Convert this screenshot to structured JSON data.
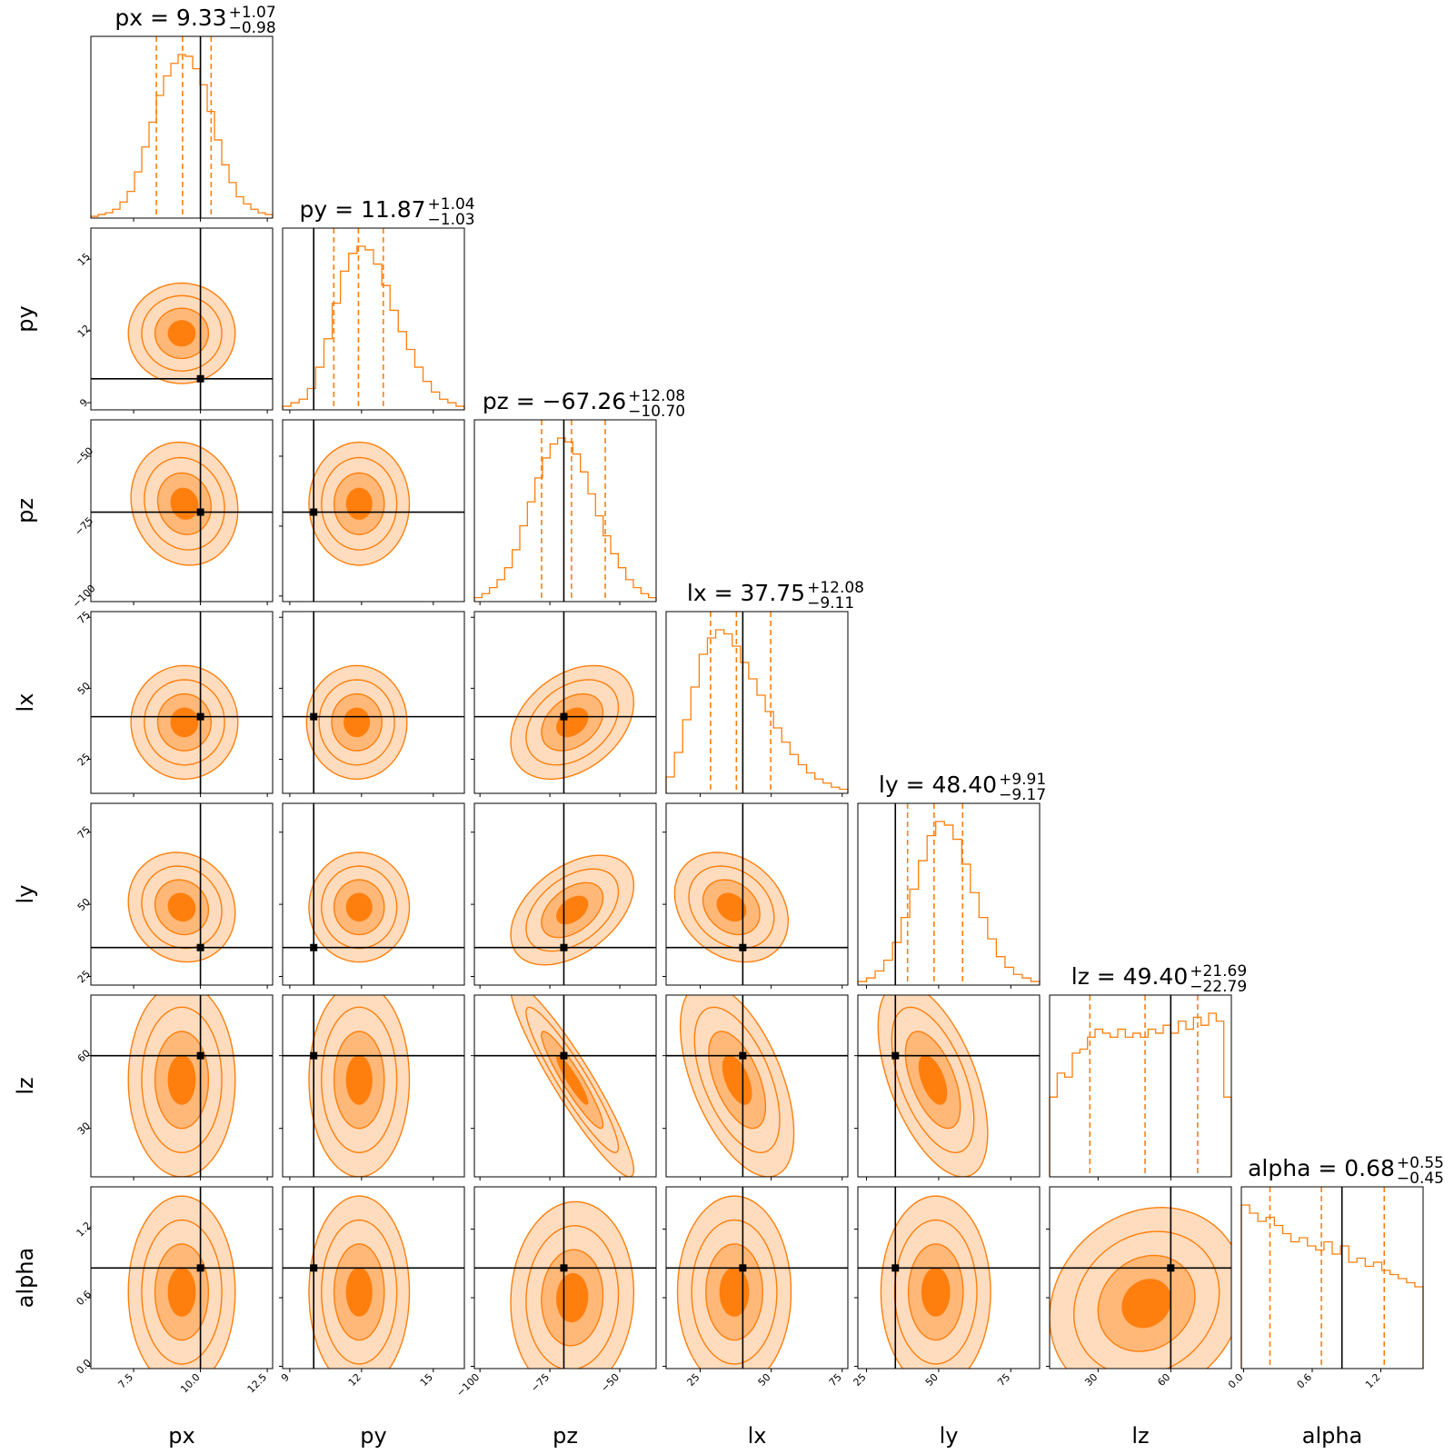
{
  "colors": {
    "accent": "#ff7f0e",
    "fill_light": "#ffdcbd",
    "fill_mid": "#ffb878",
    "fill_dark": "#ff7f0e",
    "truth": "#000000"
  },
  "chart_data": {
    "type": "corner",
    "parameters": [
      {
        "name": "px",
        "label": "px",
        "range": [
          5.9,
          12.7
        ],
        "ticks": [
          {
            "value": 7.5,
            "label": "7.5"
          },
          {
            "value": 10.0,
            "label": "10.0"
          },
          {
            "value": 12.5,
            "label": "12.5"
          }
        ],
        "truth": 10.0,
        "title": {
          "text": "px = 9.33",
          "plus": "+1.07",
          "minus": "−0.98"
        },
        "median": 9.33,
        "q_lo": 8.35,
        "q_hi": 10.4
      },
      {
        "name": "py",
        "label": "py",
        "range": [
          8.7,
          16.3
        ],
        "ticks": [
          {
            "value": 9,
            "label": "9"
          },
          {
            "value": 12,
            "label": "12"
          },
          {
            "value": 15,
            "label": "15"
          }
        ],
        "truth": 10.0,
        "title": {
          "text": "py = 11.87",
          "plus": "+1.04",
          "minus": "−1.03"
        },
        "median": 11.87,
        "q_lo": 10.84,
        "q_hi": 12.91
      },
      {
        "name": "pz",
        "label": "pz",
        "range": [
          -102,
          -37
        ],
        "ticks": [
          {
            "value": -100,
            "label": "−100"
          },
          {
            "value": -75,
            "label": "−75"
          },
          {
            "value": -50,
            "label": "−50"
          }
        ],
        "truth": -70,
        "title": {
          "text": "pz = −67.26",
          "plus": "+12.08",
          "minus": "−10.70"
        },
        "median": -67.26,
        "q_lo": -77.96,
        "q_hi": -55.18
      },
      {
        "name": "lx",
        "label": "lx",
        "range": [
          13,
          77
        ],
        "ticks": [
          {
            "value": 25,
            "label": "25"
          },
          {
            "value": 50,
            "label": "50"
          },
          {
            "value": 75,
            "label": "75"
          }
        ],
        "truth": 40,
        "title": {
          "text": "lx = 37.75",
          "plus": "+12.08",
          "minus": "−9.11"
        },
        "median": 37.75,
        "q_lo": 28.64,
        "q_hi": 49.83
      },
      {
        "name": "ly",
        "label": "ly",
        "range": [
          22,
          85
        ],
        "ticks": [
          {
            "value": 25,
            "label": "25"
          },
          {
            "value": 50,
            "label": "50"
          },
          {
            "value": 75,
            "label": "75"
          }
        ],
        "truth": 35,
        "title": {
          "text": "ly = 48.40",
          "plus": "+9.91",
          "minus": "−9.17"
        },
        "median": 48.4,
        "q_lo": 39.23,
        "q_hi": 58.31
      },
      {
        "name": "lz",
        "label": "lz",
        "range": [
          10,
          85
        ],
        "ticks": [
          {
            "value": 30,
            "label": "30"
          },
          {
            "value": 60,
            "label": "60"
          }
        ],
        "truth": 60,
        "title": {
          "text": "lz = 49.40",
          "plus": "+21.69",
          "minus": "−22.79"
        },
        "median": 49.4,
        "q_lo": 26.61,
        "q_hi": 71.09
      },
      {
        "name": "alpha",
        "label": "alpha",
        "range": [
          -0.02,
          1.57
        ],
        "ticks": [
          {
            "value": 0.0,
            "label": "0.0"
          },
          {
            "value": 0.6,
            "label": "0.6"
          },
          {
            "value": 1.2,
            "label": "1.2"
          }
        ],
        "truth": 0.86,
        "title": {
          "text": "alpha = 0.68",
          "plus": "+0.55",
          "minus": "−0.45"
        },
        "median": 0.68,
        "q_lo": 0.23,
        "q_hi": 1.23
      }
    ],
    "histograms": {
      "px": [
        1,
        2,
        3,
        5,
        9,
        15,
        26,
        40,
        54,
        69,
        80,
        87,
        92,
        91,
        84,
        75,
        60,
        44,
        30,
        20,
        12,
        8,
        5,
        3,
        2
      ],
      "py": [
        2,
        4,
        6,
        12,
        24,
        40,
        60,
        78,
        88,
        92,
        90,
        82,
        70,
        56,
        44,
        34,
        24,
        16,
        10,
        6,
        4,
        2
      ],
      "pz": [
        2,
        4,
        7,
        11,
        17,
        26,
        38,
        50,
        62,
        72,
        79,
        82,
        80,
        74,
        65,
        54,
        43,
        33,
        24,
        17,
        11,
        7,
        4,
        2
      ],
      "lx": [
        8,
        20,
        36,
        52,
        68,
        76,
        80,
        78,
        72,
        64,
        56,
        48,
        40,
        32,
        25,
        19,
        14,
        10,
        7,
        5,
        3,
        2
      ],
      "ly": [
        2,
        4,
        8,
        14,
        24,
        38,
        54,
        70,
        84,
        92,
        90,
        82,
        68,
        52,
        38,
        26,
        16,
        10,
        6,
        4,
        2
      ],
      "lz": [
        40,
        52,
        50,
        62,
        64,
        70,
        74,
        72,
        70,
        74,
        70,
        72,
        70,
        74,
        72,
        76,
        72,
        78,
        74,
        80,
        76,
        82,
        78,
        40
      ],
      "alpha": [
        80,
        76,
        72,
        74,
        70,
        66,
        62,
        64,
        60,
        58,
        62,
        56,
        60,
        52,
        54,
        50,
        52,
        48,
        46,
        44,
        42,
        40
      ]
    },
    "pair_kde": [
      {
        "x": "px",
        "y": "py",
        "mx": 9.3,
        "my": 11.9,
        "sx": 1.0,
        "sy": 1.05,
        "rho": 0
      },
      {
        "x": "px",
        "y": "pz",
        "mx": 9.4,
        "my": -67,
        "sx": 1.0,
        "sy": 11.0,
        "rho": -0.1
      },
      {
        "x": "py",
        "y": "pz",
        "mx": 11.9,
        "my": -67,
        "sx": 1.05,
        "sy": 11.0,
        "rho": 0
      },
      {
        "x": "px",
        "y": "lx",
        "mx": 9.4,
        "my": 38,
        "sx": 1.0,
        "sy": 10.0,
        "rho": 0
      },
      {
        "x": "py",
        "y": "lx",
        "mx": 11.8,
        "my": 38,
        "sx": 1.05,
        "sy": 10.0,
        "rho": 0
      },
      {
        "x": "pz",
        "y": "lx",
        "mx": -67,
        "my": 38,
        "sx": 11.0,
        "sy": 10.0,
        "rho": 0.35
      },
      {
        "x": "px",
        "y": "ly",
        "mx": 9.3,
        "my": 49,
        "sx": 1.0,
        "sy": 9.5,
        "rho": -0.1
      },
      {
        "x": "py",
        "y": "ly",
        "mx": 11.9,
        "my": 49,
        "sx": 1.05,
        "sy": 9.5,
        "rho": 0
      },
      {
        "x": "pz",
        "y": "ly",
        "mx": -67,
        "my": 48,
        "sx": 11.0,
        "sy": 9.5,
        "rho": 0.45
      },
      {
        "x": "lx",
        "y": "ly",
        "mx": 36,
        "my": 49,
        "sx": 10.0,
        "sy": 9.5,
        "rho": -0.25
      },
      {
        "x": "px",
        "y": "lz",
        "mx": 9.3,
        "my": 50,
        "sx": 1.0,
        "sy": 20.0,
        "rho": 0
      },
      {
        "x": "py",
        "y": "lz",
        "mx": 11.9,
        "my": 50,
        "sx": 1.05,
        "sy": 20.0,
        "rho": 0
      },
      {
        "x": "pz",
        "y": "lz",
        "mx": -67,
        "my": 50,
        "sx": 11.0,
        "sy": 20.0,
        "rho": -0.93
      },
      {
        "x": "lx",
        "y": "lz",
        "mx": 38,
        "my": 50,
        "sx": 10.0,
        "sy": 20.0,
        "rho": -0.55
      },
      {
        "x": "ly",
        "y": "lz",
        "mx": 48,
        "my": 50,
        "sx": 9.5,
        "sy": 20.0,
        "rho": -0.55
      },
      {
        "x": "px",
        "y": "alpha",
        "mx": 9.3,
        "my": 0.65,
        "sx": 1.0,
        "sy": 0.42,
        "rho": 0
      },
      {
        "x": "py",
        "y": "alpha",
        "mx": 11.9,
        "my": 0.65,
        "sx": 1.05,
        "sy": 0.42,
        "rho": 0
      },
      {
        "x": "pz",
        "y": "alpha",
        "mx": -67,
        "my": 0.6,
        "sx": 11.0,
        "sy": 0.42,
        "rho": 0.05
      },
      {
        "x": "lx",
        "y": "alpha",
        "mx": 37,
        "my": 0.65,
        "sx": 10.0,
        "sy": 0.42,
        "rho": 0
      },
      {
        "x": "ly",
        "y": "alpha",
        "mx": 49,
        "my": 0.65,
        "sx": 9.5,
        "sy": 0.42,
        "rho": 0
      },
      {
        "x": "lz",
        "y": "alpha",
        "mx": 50,
        "my": 0.55,
        "sx": 20.0,
        "sy": 0.42,
        "rho": 0.15
      }
    ],
    "contour_levels_sigma": [
      0.5,
      1.0,
      1.5,
      2.0
    ],
    "grid": false
  }
}
